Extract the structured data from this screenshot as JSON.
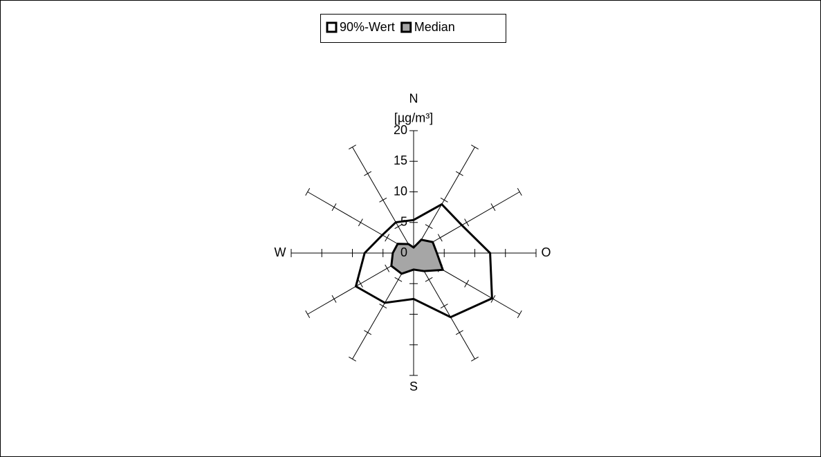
{
  "chart_data": {
    "type": "radar",
    "axis_label": "[µg/m³]",
    "categories": [
      "N",
      null,
      null,
      "O",
      null,
      null,
      "S",
      null,
      null,
      "W",
      null,
      null
    ],
    "ylim": [
      0,
      20
    ],
    "yticks": [
      0,
      5,
      10,
      15,
      20
    ],
    "series": [
      {
        "name": "90%-Wert",
        "color": "#000000",
        "fill": "#ffffff",
        "values": [
          5.4,
          9.2,
          9.1,
          12.5,
          14.8,
          12.1,
          7.5,
          9.4,
          10.9,
          8.0,
          5.9,
          5.8
        ]
      },
      {
        "name": "Median",
        "color": "#000000",
        "fill": "#a6a6a6",
        "values": [
          0.9,
          2.5,
          3.6,
          3.8,
          5.5,
          3.4,
          2.7,
          3.9,
          4.2,
          3.4,
          3.0,
          1.7
        ]
      }
    ],
    "legend": "top"
  }
}
